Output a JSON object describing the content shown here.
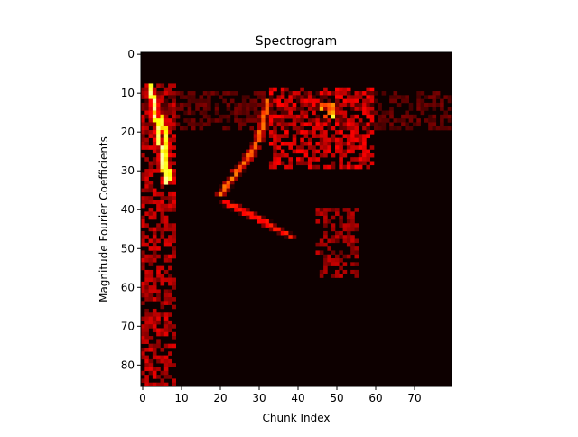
{
  "chart_data": {
    "type": "heatmap",
    "title": "Spectrogram",
    "xlabel": "Chunk Index",
    "ylabel": "Magnitude Fourier Coefficients",
    "x_range": [
      0,
      80
    ],
    "y_range": [
      0,
      86
    ],
    "y_inverted": true,
    "x_ticks": [
      0,
      10,
      20,
      30,
      40,
      50,
      60,
      70
    ],
    "y_ticks": [
      0,
      10,
      20,
      30,
      40,
      50,
      60,
      70,
      80
    ],
    "colormap": "hot",
    "colors": {
      "low": "#0d0000",
      "mid": "#b81a00",
      "high": "#ffff66"
    },
    "features": [
      {
        "name": "left-band",
        "x": [
          0,
          9
        ],
        "y": [
          8,
          86
        ],
        "level": 0.35
      },
      {
        "name": "bright-ridge-a",
        "points": [
          [
            2,
            8
          ],
          [
            3,
            14
          ],
          [
            4,
            20
          ],
          [
            5,
            27
          ],
          [
            6,
            33
          ]
        ],
        "level": 0.95
      },
      {
        "name": "bright-ridge-b",
        "points": [
          [
            5,
            16
          ],
          [
            6,
            22
          ],
          [
            6,
            28
          ],
          [
            7,
            32
          ]
        ],
        "level": 0.85
      },
      {
        "name": "arc-left",
        "points": [
          [
            20,
            36
          ],
          [
            23,
            32
          ],
          [
            26,
            28
          ],
          [
            29,
            24
          ],
          [
            31,
            18
          ],
          [
            32,
            12
          ]
        ],
        "level": 0.6
      },
      {
        "name": "arc-bottom",
        "points": [
          [
            21,
            38
          ],
          [
            27,
            41
          ],
          [
            33,
            44
          ],
          [
            38,
            47
          ]
        ],
        "level": 0.45
      },
      {
        "name": "cluster-upper",
        "x": [
          33,
          60
        ],
        "y": [
          9,
          30
        ],
        "level": 0.4
      },
      {
        "name": "hotspot-upper",
        "x": [
          46,
          50
        ],
        "y": [
          13,
          17
        ],
        "level": 0.85
      },
      {
        "name": "cluster-lower",
        "x": [
          45,
          56
        ],
        "y": [
          40,
          58
        ],
        "level": 0.3
      },
      {
        "name": "horizontal-band",
        "x": [
          0,
          80
        ],
        "y": [
          10,
          20
        ],
        "level": 0.18
      }
    ]
  }
}
